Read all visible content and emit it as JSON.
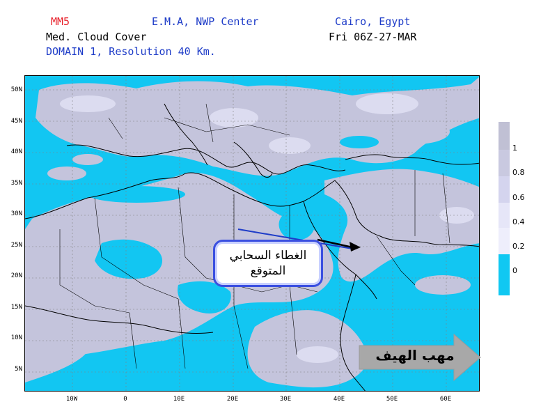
{
  "header": {
    "model": "MM5",
    "center": "E.M.A, NWP Center",
    "location": "Cairo, Egypt",
    "product": "Med. Cloud Cover",
    "valid_time": "Fri 06Z-27-MAR",
    "domain": "DOMAIN 1, Resolution 40 Km."
  },
  "map": {
    "lat_labels": [
      "50N",
      "45N",
      "40N",
      "35N",
      "30N",
      "25N",
      "20N",
      "15N",
      "10N",
      "5N"
    ],
    "lon_labels": [
      "10W",
      "0",
      "10E",
      "20E",
      "30E",
      "40E",
      "50E",
      "60E"
    ],
    "ocean_color": "#12c6f2",
    "land_cloud_color": "#c4c4dc"
  },
  "legend": {
    "colors": [
      "#c0c0d4",
      "#c9c9e0",
      "#d4d4ee",
      "#e6e6f8",
      "#eeeefc",
      "#10c8f2"
    ],
    "labels": [
      "1",
      "0.8",
      "0.6",
      "0.4",
      "0.2",
      "0"
    ]
  },
  "annotations": {
    "callout_text": "الغطاء السحابي المتوقع",
    "wind_label": "مهب الهيف",
    "wind_arrow_color": "#a8a8a8"
  }
}
